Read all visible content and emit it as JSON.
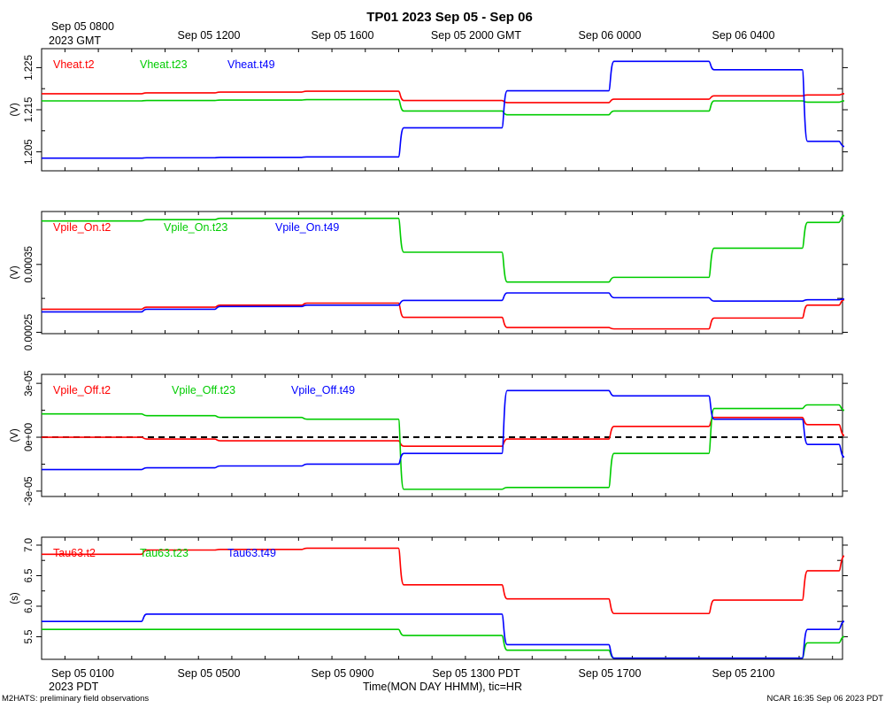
{
  "title": "TP01 2023 Sep 05 - Sep 06",
  "top_axis": {
    "first_label": [
      "Sep 05 0800",
      "2023 GMT"
    ],
    "labels": [
      "Sep 05 1200",
      "Sep 05 1600",
      "Sep 05 2000 GMT",
      "Sep 06 0000",
      "Sep 06 0400"
    ]
  },
  "bottom_axis": {
    "first_label": [
      "Sep 05 0100",
      "2023 PDT"
    ],
    "labels": [
      "Sep 05 0500",
      "Sep 05 0900",
      "Sep 05 1300 PDT",
      "Sep 05 1700",
      "Sep 05 2100"
    ],
    "xlabel": "Time(MON DAY HHMM), tic=HR"
  },
  "footer": {
    "left": "M2HATS: preliminary field observations",
    "right": "NCAR 16:35 Sep 06 2023 PDT"
  },
  "colors": {
    "t2": "#ff0000",
    "t23": "#00cc00",
    "t49": "#0000ff",
    "zero_line": "#000000"
  },
  "chart_data": [
    {
      "type": "line",
      "id": "vheat",
      "ylabel": "(V)",
      "ylim": [
        1.2005,
        1.2295
      ],
      "ytick_values": [
        1.205,
        1.215,
        1.225
      ],
      "ytick_labels": [
        "1.205",
        "1.215",
        "1.225"
      ],
      "xlim": [
        0.7,
        24.7
      ],
      "series": [
        {
          "name": "Vheat.t2",
          "color_key": "t2",
          "x": [
            0.7,
            3.8,
            6.0,
            8.6,
            11.5,
            14.6,
            17.8,
            20.8,
            23.6,
            24.7
          ],
          "y": [
            1.2188,
            1.219,
            1.2192,
            1.2194,
            1.2172,
            1.2167,
            1.2175,
            1.2183,
            1.2185,
            1.2188
          ]
        },
        {
          "name": "Vheat.t23",
          "color_key": "t23",
          "x": [
            0.7,
            3.8,
            6.0,
            8.6,
            11.5,
            14.6,
            17.8,
            20.8,
            23.6,
            24.7
          ],
          "y": [
            1.2171,
            1.2172,
            1.2173,
            1.2174,
            1.2147,
            1.2138,
            1.2147,
            1.2171,
            1.2168,
            1.2171
          ]
        },
        {
          "name": "Vheat.t49",
          "color_key": "t49",
          "x": [
            0.7,
            3.8,
            6.0,
            8.6,
            11.5,
            14.6,
            17.8,
            20.8,
            23.6,
            24.7
          ],
          "y": [
            1.2035,
            1.2036,
            1.2037,
            1.2038,
            1.2107,
            1.2195,
            1.2265,
            1.2245,
            1.2075,
            1.2063
          ]
        }
      ],
      "legend": [
        "Vheat.t2",
        "Vheat.t23",
        "Vheat.t49"
      ]
    },
    {
      "type": "line",
      "id": "vpile_on",
      "ylabel": "(V)",
      "ylim": [
        0.000248,
        0.000428
      ],
      "ytick_values": [
        0.00025,
        0.00035
      ],
      "ytick_labels": [
        "0.00025",
        "0.00035"
      ],
      "xlim": [
        0.7,
        24.7
      ],
      "series": [
        {
          "name": "Vpile_On.t2",
          "color_key": "t2",
          "x": [
            0.7,
            3.8,
            6.0,
            8.6,
            11.5,
            14.6,
            17.8,
            20.8,
            23.6,
            24.7
          ],
          "y": [
            0.000284,
            0.000287,
            0.00029,
            0.000293,
            0.000272,
            0.000257,
            0.000255,
            0.000271,
            0.00029,
            0.000298
          ]
        },
        {
          "name": "Vpile_On.t23",
          "color_key": "t23",
          "x": [
            0.7,
            3.8,
            6.0,
            8.6,
            11.5,
            14.6,
            17.8,
            20.8,
            23.6,
            24.7
          ],
          "y": [
            0.000414,
            0.000416,
            0.000418,
            0.000418,
            0.000368,
            0.000324,
            0.000331,
            0.000374,
            0.000412,
            0.000422
          ]
        },
        {
          "name": "Vpile_On.t49",
          "color_key": "t49",
          "x": [
            0.7,
            3.8,
            6.0,
            8.6,
            11.5,
            14.6,
            17.8,
            20.8,
            23.6,
            24.7
          ],
          "y": [
            0.00028,
            0.000284,
            0.000288,
            0.00029,
            0.000297,
            0.000308,
            0.000301,
            0.000296,
            0.000298,
            0.000299
          ]
        }
      ],
      "legend": [
        "Vpile_On.t2",
        "Vpile_On.t23",
        "Vpile_On.t49"
      ]
    },
    {
      "type": "line",
      "id": "vpile_off",
      "ylabel": "(V)",
      "ylim": [
        -3.3e-05,
        3.5e-05
      ],
      "ytick_values": [
        -3e-05,
        0,
        3e-05
      ],
      "ytick_labels": [
        "-3e-05",
        "0e+00",
        "3e-05"
      ],
      "zero_line": true,
      "xlim": [
        0.7,
        24.7
      ],
      "series": [
        {
          "name": "Vpile_Off.t2",
          "color_key": "t2",
          "x": [
            0.7,
            3.8,
            6.0,
            8.6,
            11.5,
            14.6,
            17.8,
            20.8,
            23.6,
            24.7
          ],
          "y": [
            0.0,
            -1e-06,
            -2e-06,
            -2e-06,
            -5e-06,
            -1e-06,
            6e-06,
            1.1e-05,
            7e-06,
            1e-06
          ]
        },
        {
          "name": "Vpile_Off.t23",
          "color_key": "t23",
          "x": [
            0.7,
            3.8,
            6.0,
            8.6,
            11.5,
            14.6,
            17.8,
            20.8,
            23.6,
            24.7
          ],
          "y": [
            1.3e-05,
            1.2e-05,
            1.1e-05,
            1e-05,
            -2.9e-05,
            -2.8e-05,
            -9e-06,
            1.6e-05,
            1.8e-05,
            1.5e-05
          ]
        },
        {
          "name": "Vpile_Off.t49",
          "color_key": "t49",
          "x": [
            0.7,
            3.8,
            6.0,
            8.6,
            11.5,
            14.6,
            17.8,
            20.8,
            23.6,
            24.7
          ],
          "y": [
            -1.8e-05,
            -1.7e-05,
            -1.6e-05,
            -1.5e-05,
            -9e-06,
            2.6e-05,
            2.3e-05,
            1e-05,
            -4e-06,
            -1.1e-05
          ]
        }
      ],
      "legend": [
        "Vpile_Off.t2",
        "Vpile_Off.t23",
        "Vpile_Off.t49"
      ]
    },
    {
      "type": "line",
      "id": "tau63",
      "ylabel": "(s)",
      "ylim": [
        5.13,
        7.13
      ],
      "ytick_values": [
        5.5,
        6.0,
        6.5,
        7.0
      ],
      "ytick_labels": [
        "5.5",
        "6.0",
        "6.5",
        "7.0"
      ],
      "xlim": [
        0.7,
        24.7
      ],
      "series": [
        {
          "name": "Tau63.t2",
          "color_key": "t2",
          "x": [
            0.7,
            3.8,
            6.0,
            8.6,
            11.5,
            14.6,
            17.8,
            20.8,
            23.6,
            24.7
          ],
          "y": [
            6.85,
            6.92,
            6.93,
            6.95,
            6.35,
            6.12,
            5.88,
            6.1,
            6.58,
            6.82
          ]
        },
        {
          "name": "Tau63.t23",
          "color_key": "t23",
          "x": [
            0.7,
            3.8,
            6.0,
            8.6,
            11.5,
            14.6,
            17.8,
            20.8,
            23.6,
            24.7
          ],
          "y": [
            5.62,
            5.62,
            5.62,
            5.62,
            5.52,
            5.28,
            5.15,
            5.15,
            5.4,
            5.5
          ]
        },
        {
          "name": "Tau63.t49",
          "color_key": "t49",
          "x": [
            0.7,
            3.8,
            6.0,
            8.6,
            11.5,
            14.6,
            17.8,
            20.8,
            23.6,
            24.7
          ],
          "y": [
            5.75,
            5.87,
            5.87,
            5.87,
            5.87,
            5.37,
            5.15,
            5.15,
            5.62,
            5.75
          ]
        }
      ],
      "legend": [
        "Tau63.t2",
        "Tau63.t23",
        "Tau63.t49"
      ]
    }
  ]
}
